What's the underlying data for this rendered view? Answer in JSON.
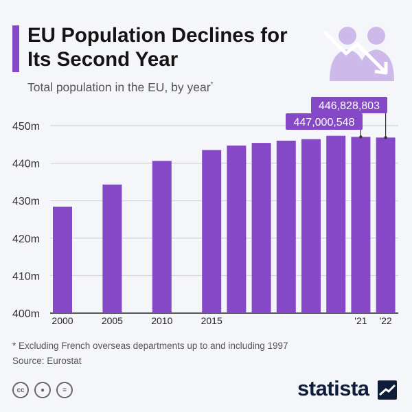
{
  "header": {
    "title": "EU Population Declines for Its Second Year",
    "subtitle": "Total population in the EU, by year",
    "subtitle_mark": "*"
  },
  "footer": {
    "footnote": "* Excluding French overseas departments up to and including 1997",
    "source": "Source: Eurostat",
    "brand": "statista",
    "license_icons": [
      "cc-icon",
      "attribution-icon",
      "no-derivatives-icon"
    ]
  },
  "colors": {
    "bar": "#8549c7",
    "accent": "#8549c7",
    "grid": "#c9c9d3",
    "hero": "#cdb9ea",
    "brand": "#0f1c3a"
  },
  "chart_data": {
    "type": "bar",
    "title": "EU Population Declines for Its Second Year",
    "subtitle": "Total population in the EU, by year",
    "x": [
      2000,
      2005,
      2010,
      2015,
      2016,
      2017,
      2018,
      2019,
      2020,
      2021,
      2022
    ],
    "x_tick_labels": [
      "2000",
      "2005",
      "2010",
      "2015",
      "",
      "",
      "",
      "",
      "",
      "'21",
      "'22"
    ],
    "values": [
      428.4,
      434.3,
      440.6,
      443.5,
      444.7,
      445.4,
      446.0,
      446.4,
      447.3,
      447.000548,
      446.828803
    ],
    "unit": "m",
    "ylim": [
      400,
      450
    ],
    "y_ticks": [
      400,
      410,
      420,
      430,
      440,
      450
    ],
    "y_tick_labels": [
      "400m",
      "410m",
      "420m",
      "430m",
      "440m",
      "450m"
    ],
    "annotations": [
      {
        "x": 2021,
        "text": "447,000,548"
      },
      {
        "x": 2022,
        "text": "446,828,803"
      }
    ],
    "grid": true,
    "legend": "none"
  }
}
